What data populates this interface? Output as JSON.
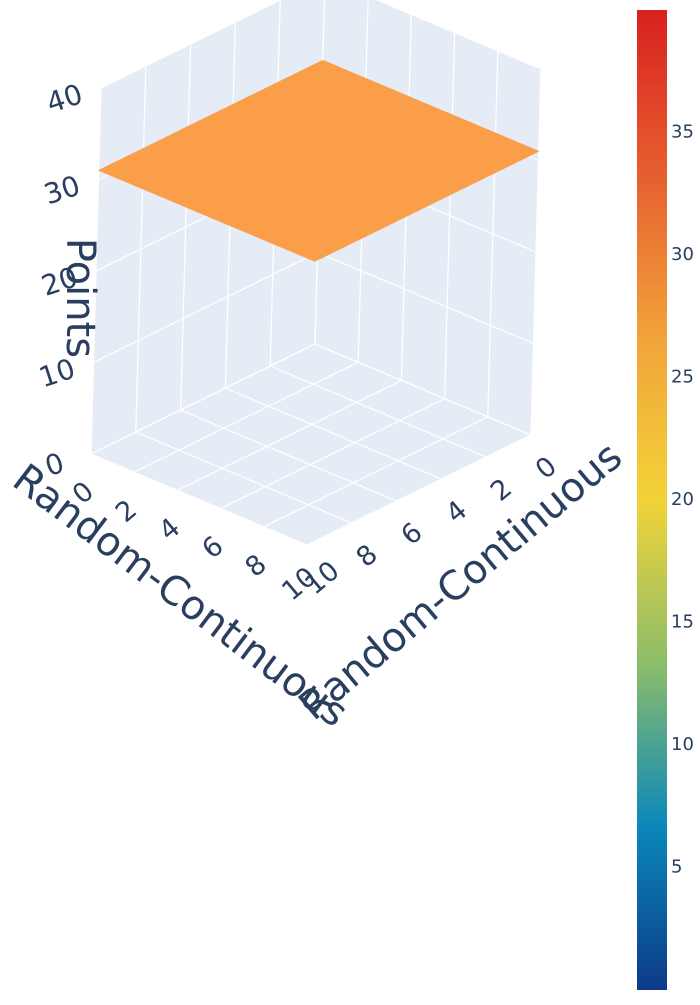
{
  "chart_data": {
    "type": "surface3d",
    "x_axis": {
      "title": "Random-Continuous",
      "ticks": [
        0,
        2,
        4,
        6,
        8,
        10
      ],
      "range": [
        0,
        10
      ]
    },
    "y_axis": {
      "title": "Random-Continuous",
      "ticks": [
        0,
        2,
        4,
        6,
        8,
        10
      ],
      "range": [
        0,
        10
      ]
    },
    "z_axis": {
      "title": "Points",
      "ticks": [
        0,
        10,
        20,
        30,
        40
      ],
      "range": [
        0,
        40
      ]
    },
    "surface": {
      "x": [
        0,
        2,
        4,
        6,
        8,
        10
      ],
      "y": [
        0,
        2,
        4,
        6,
        8,
        10
      ],
      "z": [
        [
          31,
          31,
          31,
          31,
          31,
          31
        ],
        [
          31,
          31,
          31,
          31,
          31,
          31
        ],
        [
          31,
          31,
          31,
          31,
          31,
          31
        ],
        [
          31,
          31,
          31,
          31,
          31,
          31
        ],
        [
          31,
          31,
          31,
          31,
          31,
          31
        ],
        [
          31,
          31,
          31,
          31,
          31,
          31
        ]
      ],
      "color": "#fb9e4a"
    },
    "colorbar": {
      "ticks": [
        5,
        10,
        15,
        20,
        25,
        30,
        35
      ],
      "range": [
        0,
        40
      ],
      "colors": [
        "#0d3a8a",
        "#0a88ba",
        "#8cbd6a",
        "#f2d338",
        "#f2a33a",
        "#e65e2f",
        "#d92120"
      ]
    },
    "background_color": "#e5ecf6",
    "grid": true
  }
}
